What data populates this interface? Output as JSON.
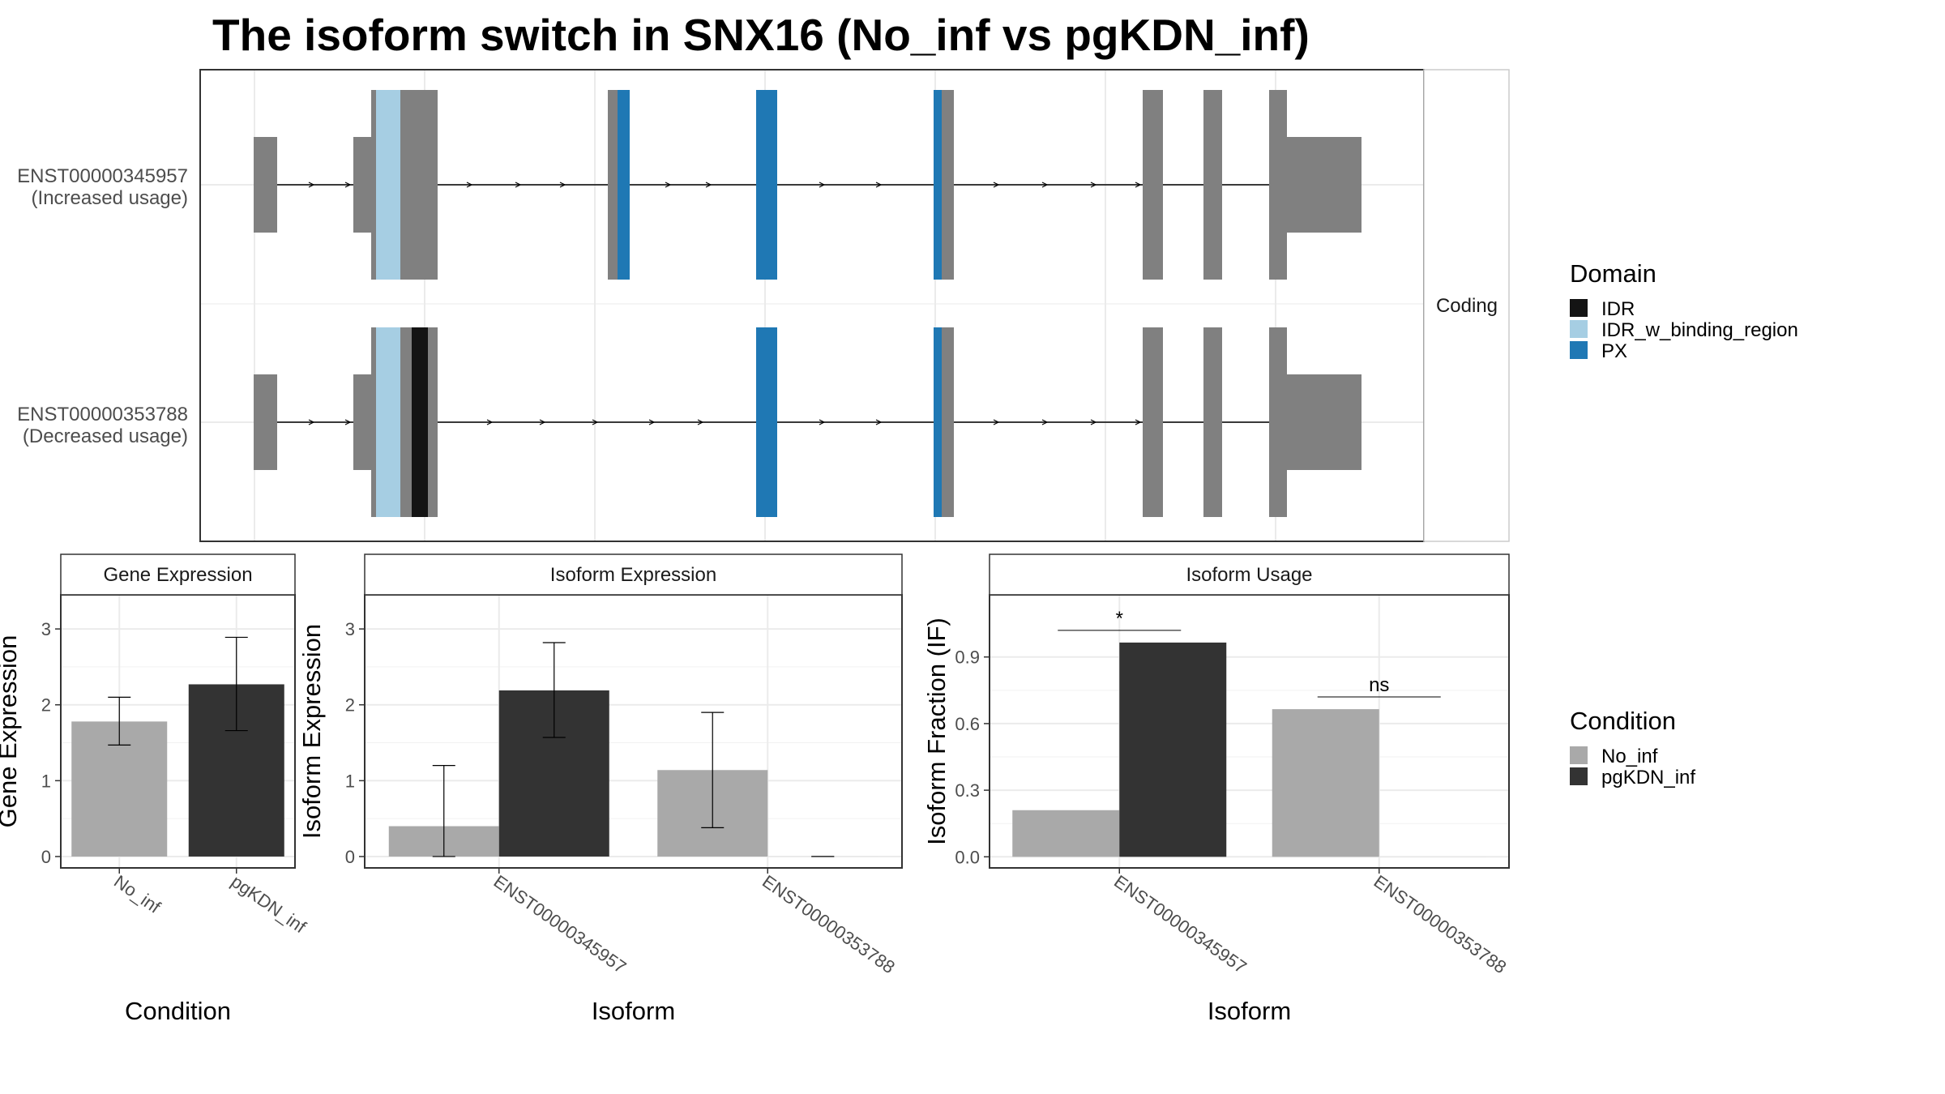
{
  "title": "The isoform switch in SNX16 (No_inf vs pgKDN_inf)",
  "structure_panel": {
    "facet_label": "Coding",
    "isoforms": [
      {
        "id": "ENST00000345957",
        "usage": "(Increased usage)"
      },
      {
        "id": "ENST00000353788",
        "usage": "(Decreased usage)"
      }
    ]
  },
  "domain_legend": {
    "title": "Domain",
    "items": [
      {
        "label": "IDR",
        "color": "#141414"
      },
      {
        "label": "IDR_w_binding_region",
        "color": "#a6cee3"
      },
      {
        "label": "PX",
        "color": "#1f78b4"
      }
    ]
  },
  "condition_legend": {
    "title": "Condition",
    "items": [
      {
        "label": "No_inf",
        "color": "#a9a9a9"
      },
      {
        "label": "pgKDN_inf",
        "color": "#333333"
      }
    ]
  },
  "chart_data": [
    {
      "type": "bar",
      "title": "Gene Expression",
      "xlabel": "Condition",
      "ylabel": "Gene Expression",
      "categories": [
        "No_inf",
        "pgKDN_inf"
      ],
      "series": [
        {
          "name": "No_inf",
          "values": [
            1.78,
            null
          ],
          "err_low": [
            1.47,
            null
          ],
          "err_high": [
            2.1,
            null
          ]
        },
        {
          "name": "pgKDN_inf",
          "values": [
            null,
            2.27
          ],
          "err_low": [
            null,
            1.66
          ],
          "err_high": [
            null,
            2.89
          ]
        }
      ],
      "yticks": [
        "0",
        "1",
        "2",
        "3"
      ],
      "ylim": [
        -0.15,
        3.45
      ]
    },
    {
      "type": "bar",
      "title": "Isoform Expression",
      "xlabel": "Isoform",
      "ylabel": "Isoform Expression",
      "categories": [
        "ENST00000345957",
        "ENST00000353788"
      ],
      "series": [
        {
          "name": "No_inf",
          "values": [
            0.4,
            1.14
          ],
          "err_low": [
            0.0,
            0.38
          ],
          "err_high": [
            1.2,
            1.9
          ]
        },
        {
          "name": "pgKDN_inf",
          "values": [
            2.19,
            0.0
          ],
          "err_low": [
            1.57,
            0.0
          ],
          "err_high": [
            2.82,
            0.0
          ]
        }
      ],
      "yticks": [
        "0",
        "1",
        "2",
        "3"
      ],
      "ylim": [
        -0.15,
        3.45
      ]
    },
    {
      "type": "bar",
      "title": "Isoform Usage",
      "xlabel": "Isoform",
      "ylabel": "Isoform Fraction (IF)",
      "categories": [
        "ENST00000345957",
        "ENST00000353788"
      ],
      "series": [
        {
          "name": "No_inf",
          "values": [
            0.21,
            0.665
          ]
        },
        {
          "name": "pgKDN_inf",
          "values": [
            0.965,
            0.0
          ]
        }
      ],
      "yticks": [
        "0.0",
        "0.3",
        "0.6",
        "0.9"
      ],
      "ylim": [
        -0.05,
        1.18
      ],
      "significance": [
        {
          "category": "ENST00000345957",
          "label": "*",
          "y": 1.02
        },
        {
          "category": "ENST00000353788",
          "label": "ns",
          "y": 0.72
        }
      ]
    }
  ]
}
